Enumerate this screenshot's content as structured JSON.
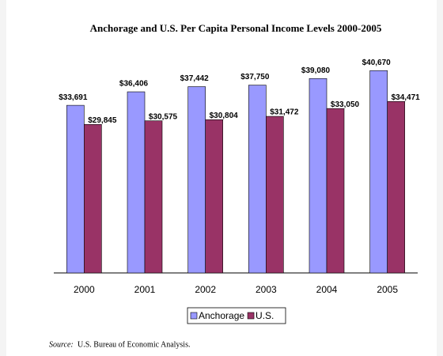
{
  "chart_data": {
    "type": "bar",
    "title": "Anchorage and U.S. Per Capita Personal Income Levels 2000-2005",
    "categories": [
      "2000",
      "2001",
      "2002",
      "2003",
      "2004",
      "2005"
    ],
    "series": [
      {
        "name": "Anchorage",
        "color": "#9999ff",
        "values": [
          33691,
          36406,
          37442,
          37750,
          39080,
          40670
        ],
        "value_labels": [
          "$33,691",
          "$36,406",
          "$37,442",
          "$37,750",
          "$39,080",
          "$40,670"
        ]
      },
      {
        "name": "U.S.",
        "color": "#993366",
        "values": [
          29845,
          30575,
          30804,
          31472,
          33050,
          34471
        ],
        "value_labels": [
          "$29,845",
          "$30,575",
          "$30,804",
          "$31,472",
          "$33,050",
          "$34,471"
        ]
      }
    ],
    "ylim": [
      0,
      45000
    ],
    "source_label": "Source:",
    "source": "U.S. Bureau of Economic Analysis."
  }
}
